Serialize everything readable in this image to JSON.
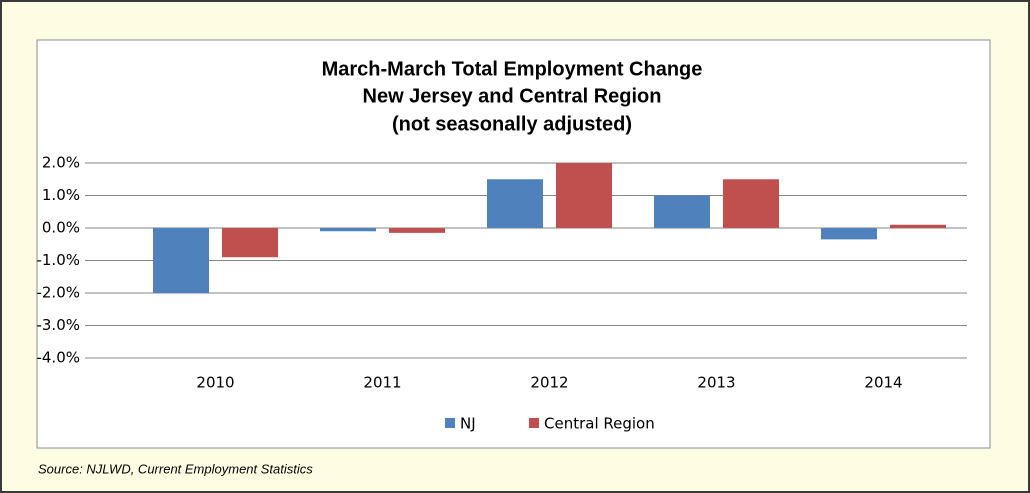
{
  "chart_data": {
    "type": "bar",
    "title": [
      "March-March Total Employment Change",
      "New Jersey and Central Region",
      "(not seasonally adjusted)"
    ],
    "categories": [
      "2010",
      "2011",
      "2012",
      "2013",
      "2014"
    ],
    "series": [
      {
        "name": "NJ",
        "color": "#4f81bd",
        "values": [
          -2.0,
          -0.1,
          1.5,
          1.0,
          -0.35
        ]
      },
      {
        "name": "Central Region",
        "color": "#c0504d",
        "values": [
          -0.9,
          -0.15,
          2.0,
          1.5,
          0.1
        ]
      }
    ],
    "ylim": [
      -4,
      2
    ],
    "yticks": [
      {
        "value": 2,
        "label": "2.0%"
      },
      {
        "value": 1,
        "label": "1.0%"
      },
      {
        "value": 0,
        "label": "0.0%"
      },
      {
        "value": -1,
        "label": "-1.0%"
      },
      {
        "value": -2,
        "label": "-2.0%"
      },
      {
        "value": -3,
        "label": "-3.0%"
      },
      {
        "value": -4,
        "label": "-4.0%"
      }
    ],
    "grid": true,
    "legend": "bottom",
    "source": "Source: NJLWD, Current Employment Statistics"
  }
}
